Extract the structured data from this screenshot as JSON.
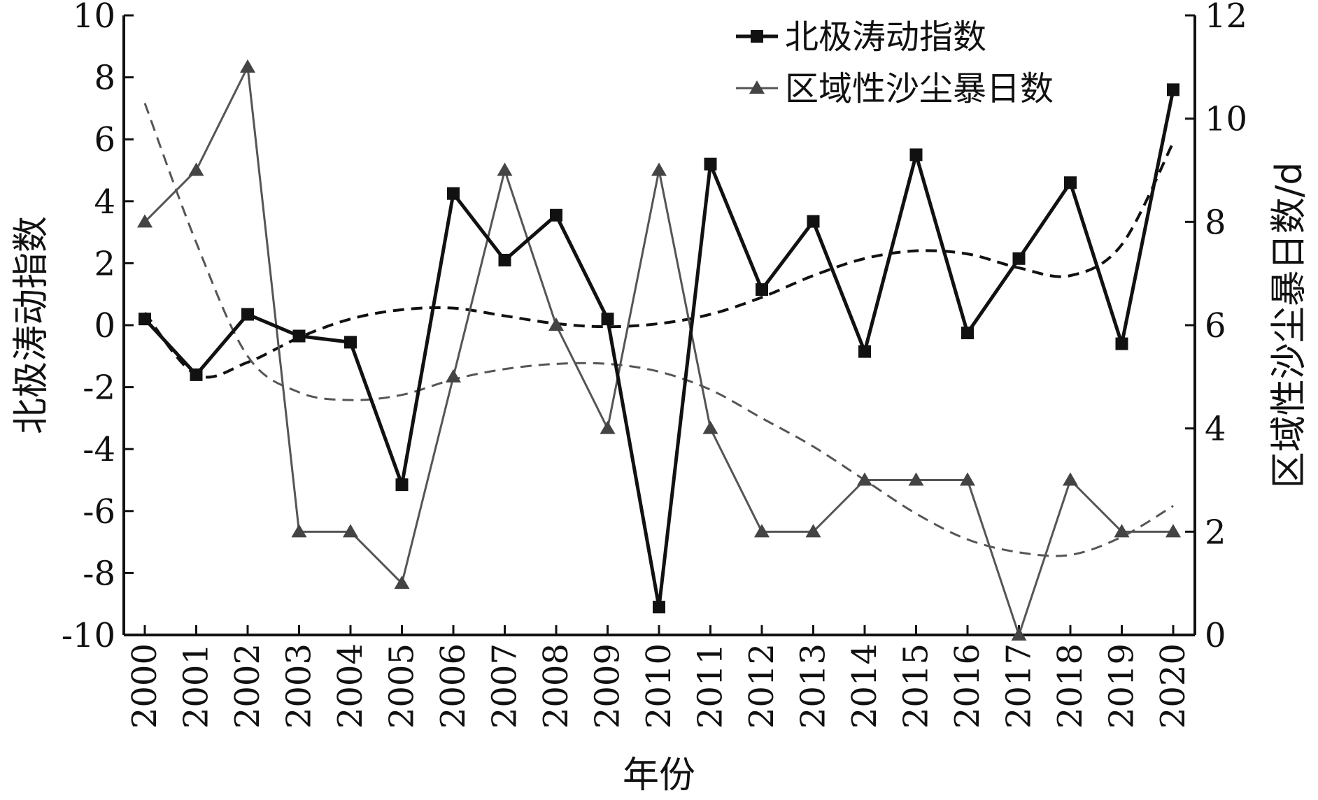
{
  "chart_data": {
    "type": "line",
    "xlabel": "年份",
    "ylabel_left": "北极涛动指数",
    "ylabel_right": "区域性沙尘暴日数/d",
    "x": [
      "2000",
      "2001",
      "2002",
      "2003",
      "2004",
      "2005",
      "2006",
      "2007",
      "2008",
      "2009",
      "2010",
      "2011",
      "2012",
      "2013",
      "2014",
      "2015",
      "2016",
      "2017",
      "2018",
      "2019",
      "2020"
    ],
    "yleft_lim": [
      -10,
      10
    ],
    "yleft_ticks": [
      -10,
      -8,
      -6,
      -4,
      -2,
      0,
      2,
      4,
      6,
      8,
      10
    ],
    "yright_lim": [
      0,
      12
    ],
    "yright_ticks": [
      0,
      2,
      4,
      6,
      8,
      10,
      12
    ],
    "grid": false,
    "legend_position": "top-center",
    "series": [
      {
        "name": "北极涛动指数",
        "axis": "left",
        "marker": "square",
        "color": "#111111",
        "values": [
          0.2,
          -1.6,
          0.35,
          -0.35,
          -0.55,
          -5.15,
          4.25,
          2.1,
          3.55,
          0.2,
          -9.1,
          5.2,
          1.15,
          3.35,
          -0.85,
          5.5,
          -0.25,
          2.15,
          4.6,
          -0.6,
          7.6
        ]
      },
      {
        "name": "区域性沙尘暴日数",
        "axis": "right",
        "marker": "triangle",
        "color": "#555555",
        "values": [
          8,
          9,
          11,
          2,
          2,
          1,
          5,
          9,
          6,
          4,
          9,
          4,
          2,
          2,
          3,
          3,
          3,
          0,
          3,
          2,
          2
        ]
      }
    ],
    "trend_lines": [
      {
        "of_series": "北极涛动指数",
        "axis": "left",
        "style": "dashed",
        "color": "#111111",
        "values": [
          0.4,
          -1.6,
          -1.2,
          -0.4,
          0.2,
          0.5,
          0.55,
          0.3,
          0.05,
          -0.05,
          0.05,
          0.35,
          0.9,
          1.6,
          2.15,
          2.4,
          2.3,
          1.85,
          1.6,
          2.6,
          5.9
        ]
      },
      {
        "of_series": "区域性沙尘暴日数",
        "axis": "right",
        "style": "dashed",
        "color": "#555555",
        "values": [
          10.3,
          7.6,
          5.4,
          4.7,
          4.55,
          4.65,
          4.95,
          5.15,
          5.25,
          5.25,
          5.1,
          4.75,
          4.2,
          3.65,
          3.0,
          2.35,
          1.85,
          1.6,
          1.55,
          1.9,
          2.5
        ]
      }
    ]
  }
}
